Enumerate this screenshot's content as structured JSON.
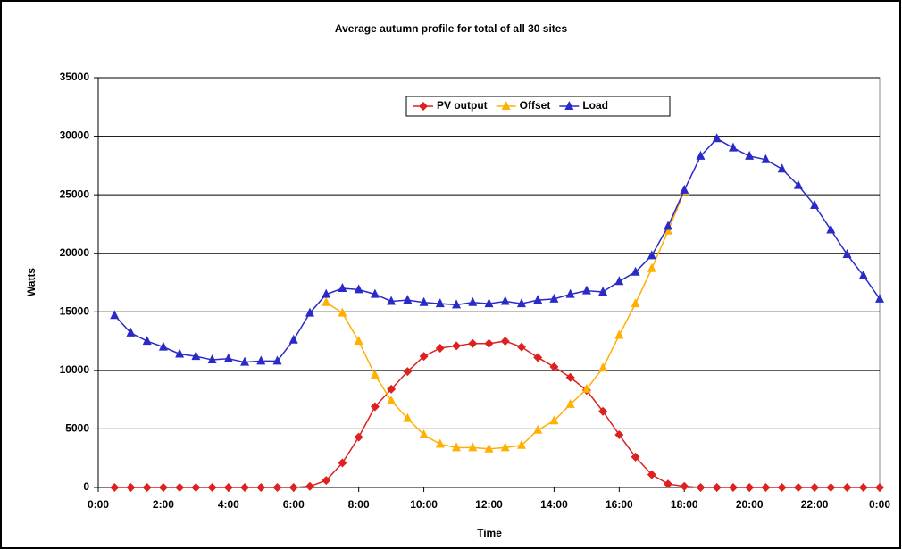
{
  "chart_data": {
    "type": "line",
    "title": "Average autumn profile for total of all 30 sites",
    "x_label": "Time",
    "y_label": "Watts",
    "x": [
      0.5,
      1,
      1.5,
      2,
      2.5,
      3,
      3.5,
      4,
      4.5,
      5,
      5.5,
      6,
      6.5,
      7,
      7.5,
      8,
      8.5,
      9,
      9.5,
      10,
      10.5,
      11,
      11.5,
      12,
      12.5,
      13,
      13.5,
      14,
      14.5,
      15,
      15.5,
      16,
      16.5,
      17,
      17.5,
      18,
      18.5,
      19,
      19.5,
      20,
      20.5,
      21,
      21.5,
      22,
      22.5,
      23,
      23.5,
      24
    ],
    "series": [
      {
        "name": "PV output",
        "color": "#dd2020",
        "marker": "diamond",
        "values": [
          0,
          0,
          0,
          0,
          0,
          0,
          0,
          0,
          0,
          0,
          0,
          0,
          100,
          600,
          2100,
          4300,
          6900,
          8400,
          9900,
          11200,
          11900,
          12100,
          12300,
          12300,
          12500,
          12000,
          11100,
          10300,
          9400,
          8300,
          6500,
          4500,
          2600,
          1100,
          300,
          100,
          0,
          0,
          0,
          0,
          0,
          0,
          0,
          0,
          0,
          0,
          0,
          0
        ]
      },
      {
        "name": "Offset",
        "color": "#ffb000",
        "marker": "triangle",
        "values": [
          null,
          null,
          null,
          null,
          null,
          null,
          null,
          null,
          null,
          null,
          null,
          null,
          null,
          15800,
          14900,
          12500,
          9600,
          7400,
          5900,
          4500,
          3700,
          3400,
          3400,
          3300,
          3400,
          3600,
          4900,
          5700,
          7100,
          8400,
          10200,
          13000,
          15700,
          18700,
          21900,
          25300,
          null,
          null,
          null,
          null,
          null,
          null,
          null,
          null,
          null,
          null,
          null,
          null
        ]
      },
      {
        "name": "Load",
        "color": "#2a2ac8",
        "marker": "triangle",
        "values": [
          14700,
          13200,
          12500,
          12000,
          11400,
          11200,
          10900,
          11000,
          10700,
          10800,
          10800,
          12600,
          14900,
          16500,
          17000,
          16900,
          16500,
          15900,
          16000,
          15800,
          15700,
          15600,
          15800,
          15700,
          15900,
          15700,
          16000,
          16100,
          16500,
          16800,
          16700,
          17600,
          18400,
          19800,
          22300,
          25400,
          28300,
          29800,
          29000,
          28300,
          28000,
          27200,
          25800,
          24100,
          22000,
          19900,
          18100,
          16100
        ]
      }
    ],
    "xlim": [
      0,
      24
    ],
    "xticks": [
      {
        "value": 0,
        "label": "0:00"
      },
      {
        "value": 2,
        "label": "2:00"
      },
      {
        "value": 4,
        "label": "4:00"
      },
      {
        "value": 6,
        "label": "6:00"
      },
      {
        "value": 8,
        "label": "8:00"
      },
      {
        "value": 10,
        "label": "10:00"
      },
      {
        "value": 12,
        "label": "12:00"
      },
      {
        "value": 14,
        "label": "14:00"
      },
      {
        "value": 16,
        "label": "16:00"
      },
      {
        "value": 18,
        "label": "18:00"
      },
      {
        "value": 20,
        "label": "20:00"
      },
      {
        "value": 22,
        "label": "22:00"
      },
      {
        "value": 24,
        "label": "0:00"
      }
    ],
    "ylim": [
      0,
      35000
    ],
    "yticks": [
      0,
      5000,
      10000,
      15000,
      20000,
      25000,
      30000,
      35000
    ],
    "grid": true,
    "legend": "top"
  }
}
